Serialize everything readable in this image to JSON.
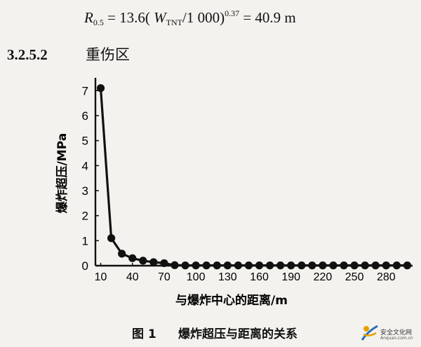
{
  "formula": {
    "lhs": "R",
    "lhs_sub": "0.5",
    "mid_a": " = 13.6( ",
    "w": "W",
    "w_sub": "TNT",
    "mid_b": "/1 000)",
    "exp": "0.37",
    "rhs": " = 40.9 m"
  },
  "section": {
    "number": "3.2.5.2",
    "title": "重伤区"
  },
  "chart_data": {
    "type": "line",
    "title": "",
    "xlabel": "与爆炸中心的距离/m",
    "ylabel": "爆炸超压/MPa",
    "xlim": [
      5,
      305
    ],
    "ylim": [
      0,
      7.4
    ],
    "x_ticks": [
      10,
      40,
      70,
      100,
      130,
      160,
      190,
      220,
      250,
      280
    ],
    "y_ticks": [
      0,
      1,
      2,
      3,
      4,
      5,
      6,
      7
    ],
    "series": [
      {
        "x": [
          10,
          20,
          30,
          40,
          50,
          60,
          70,
          80,
          90,
          100,
          110,
          120,
          130,
          140,
          150,
          160,
          170,
          180,
          190,
          200,
          210,
          220,
          230,
          240,
          250,
          260,
          270,
          280,
          290,
          300
        ],
        "y": [
          7.1,
          1.1,
          0.48,
          0.3,
          0.2,
          0.14,
          0.1,
          0.02,
          0.01,
          0.01,
          0.01,
          0.01,
          0.01,
          0.01,
          0.01,
          0.01,
          0.01,
          0.01,
          0.01,
          0.01,
          0.01,
          0.01,
          0.01,
          0.01,
          0.01,
          0.01,
          0.01,
          0.01,
          0.01,
          0.01
        ]
      }
    ],
    "grid": false,
    "legend": "none"
  },
  "caption": {
    "label": "图 1",
    "text": "爆炸超压与距离的关系"
  },
  "watermark": {
    "text": "安全文化网",
    "url": "Anquan.com.cn"
  }
}
